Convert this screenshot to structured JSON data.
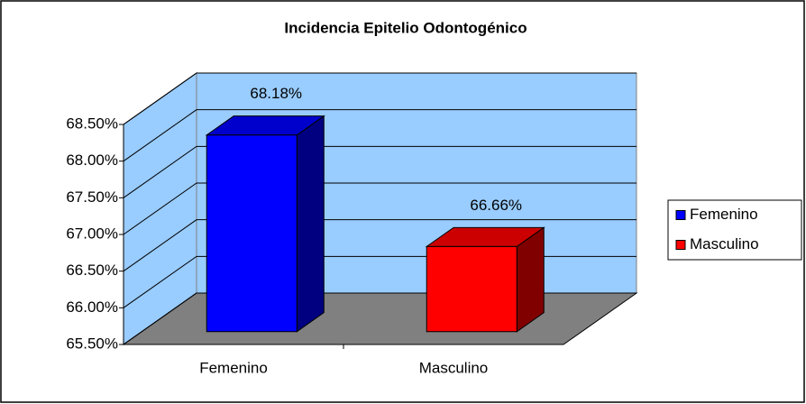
{
  "chart_data": {
    "type": "bar3d",
    "title": "Incidencia Epitelio Odontogénico",
    "categories": [
      "Femenino",
      "Masculino"
    ],
    "values": [
      68.18,
      66.66
    ],
    "value_labels": [
      "68.18%",
      "66.66%"
    ],
    "colors": [
      "#0000ff",
      "#ff0000"
    ],
    "ylim": [
      65.5,
      68.5
    ],
    "yticks": [
      {
        "value": 65.5,
        "label": "65.50%"
      },
      {
        "value": 66,
        "label": "66.00%"
      },
      {
        "value": 66.5,
        "label": "66.50%"
      },
      {
        "value": 67,
        "label": "67.00%"
      },
      {
        "value": 67.5,
        "label": "67.50%"
      },
      {
        "value": 68,
        "label": "68.00%"
      },
      {
        "value": 68.5,
        "label": "68.50%"
      }
    ],
    "grid": true,
    "legend": "right"
  }
}
